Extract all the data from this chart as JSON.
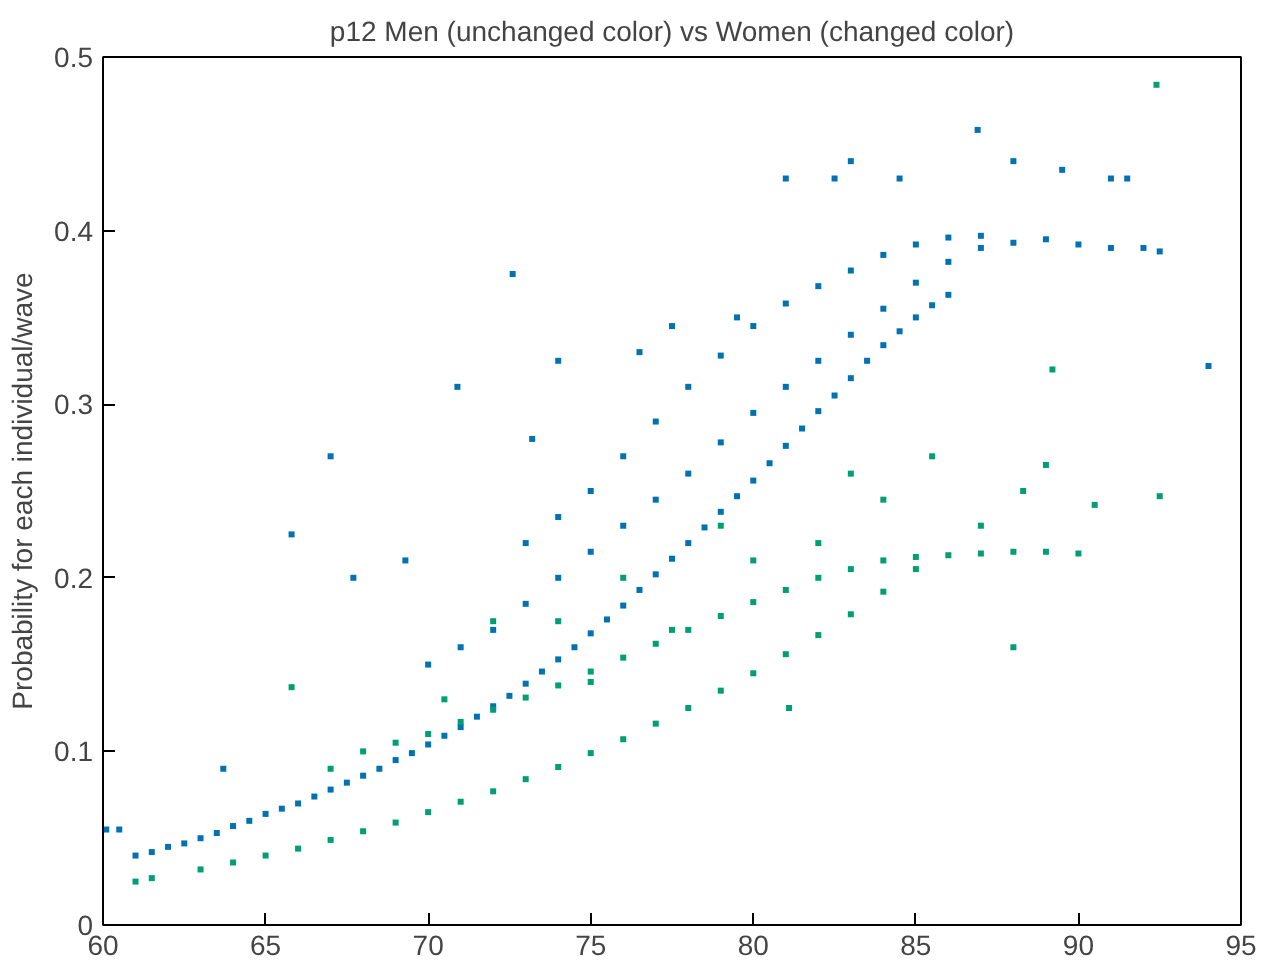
{
  "chart_data": {
    "type": "scatter",
    "title": "p12 Men (unchanged color) vs Women (changed color)",
    "ylabel": "Probability for each individual/wave",
    "xlim": [
      60,
      95
    ],
    "ylim": [
      0,
      0.5
    ],
    "xticks": [
      60,
      65,
      70,
      75,
      80,
      85,
      90,
      95
    ],
    "yticks": [
      0,
      0.1,
      0.2,
      0.3,
      0.4,
      0.5
    ],
    "grid": false,
    "marker": "square",
    "series": [
      {
        "color": "#0072b2",
        "x": [
          60.1,
          60.5,
          61,
          61.5,
          62,
          62.5,
          63,
          63.5,
          64,
          64.5,
          65,
          65.5,
          66,
          66.5,
          67,
          67.5,
          68,
          68.5,
          69,
          69.5,
          70,
          70.5,
          71,
          71.5,
          72,
          72.5,
          73,
          73.5,
          74,
          74.5,
          75,
          75.5,
          76,
          76.5,
          77,
          77.5,
          78,
          78.5,
          79,
          79.5,
          80,
          80.5,
          81,
          81.5,
          82,
          82.5,
          83,
          83.5,
          84,
          84.5,
          85,
          85.5,
          86,
          70,
          71,
          72,
          73,
          74,
          75,
          76,
          77,
          78,
          79,
          80,
          81,
          82,
          83,
          84,
          85,
          86,
          87,
          88,
          89,
          90,
          91,
          92,
          92.5,
          73,
          74,
          75,
          76,
          77,
          78,
          79,
          80,
          81,
          82,
          83,
          84,
          85,
          86,
          87,
          63.7,
          65.8,
          67,
          67.7,
          69.3,
          70.9,
          72.6,
          73.2,
          74,
          76.5,
          77.5,
          79.5,
          81,
          82.5,
          83,
          84.5,
          86.9,
          88,
          89.5,
          91,
          91.5,
          94
        ],
        "values": [
          0.055,
          0.055,
          0.04,
          0.042,
          0.045,
          0.047,
          0.05,
          0.053,
          0.057,
          0.06,
          0.064,
          0.067,
          0.07,
          0.074,
          0.078,
          0.082,
          0.086,
          0.09,
          0.095,
          0.099,
          0.104,
          0.109,
          0.114,
          0.12,
          0.126,
          0.132,
          0.139,
          0.146,
          0.153,
          0.16,
          0.168,
          0.176,
          0.184,
          0.193,
          0.202,
          0.211,
          0.22,
          0.229,
          0.238,
          0.247,
          0.256,
          0.266,
          0.276,
          0.286,
          0.296,
          0.305,
          0.315,
          0.325,
          0.334,
          0.342,
          0.35,
          0.357,
          0.363,
          0.15,
          0.16,
          0.17,
          0.185,
          0.2,
          0.215,
          0.23,
          0.245,
          0.26,
          0.278,
          0.295,
          0.31,
          0.325,
          0.34,
          0.355,
          0.37,
          0.382,
          0.39,
          0.393,
          0.395,
          0.392,
          0.39,
          0.39,
          0.388,
          0.22,
          0.235,
          0.25,
          0.27,
          0.29,
          0.31,
          0.328,
          0.345,
          0.358,
          0.368,
          0.377,
          0.386,
          0.392,
          0.396,
          0.397,
          0.09,
          0.225,
          0.27,
          0.2,
          0.21,
          0.31,
          0.375,
          0.28,
          0.325,
          0.33,
          0.345,
          0.35,
          0.43,
          0.43,
          0.44,
          0.43,
          0.458,
          0.44,
          0.435,
          0.43,
          0.43,
          0.322
        ]
      },
      {
        "color": "#009e73",
        "x": [
          61,
          61.5,
          63,
          64,
          65,
          66,
          67,
          68,
          69,
          70,
          71,
          72,
          73,
          74,
          75,
          76,
          77,
          78,
          79,
          80,
          81,
          82,
          83,
          84,
          85,
          68,
          69,
          70,
          71,
          72,
          73,
          74,
          75,
          76,
          77,
          78,
          79,
          80,
          81,
          82,
          83,
          84,
          85,
          86,
          87,
          88,
          89,
          90,
          65.8,
          67,
          70.5,
          72,
          74,
          75,
          76,
          77.5,
          79,
          80,
          81.1,
          82,
          83,
          84,
          85.5,
          87,
          88,
          88.3,
          89,
          89.2,
          90.5,
          92.4,
          92.5
        ],
        "values": [
          0.025,
          0.027,
          0.032,
          0.036,
          0.04,
          0.044,
          0.049,
          0.054,
          0.059,
          0.065,
          0.071,
          0.077,
          0.084,
          0.091,
          0.099,
          0.107,
          0.116,
          0.125,
          0.135,
          0.145,
          0.156,
          0.167,
          0.179,
          0.192,
          0.205,
          0.1,
          0.105,
          0.11,
          0.117,
          0.124,
          0.131,
          0.138,
          0.146,
          0.154,
          0.162,
          0.17,
          0.178,
          0.186,
          0.193,
          0.2,
          0.205,
          0.21,
          0.212,
          0.213,
          0.214,
          0.215,
          0.215,
          0.214,
          0.137,
          0.09,
          0.13,
          0.175,
          0.175,
          0.14,
          0.2,
          0.17,
          0.23,
          0.21,
          0.125,
          0.22,
          0.26,
          0.245,
          0.27,
          0.23,
          0.16,
          0.25,
          0.265,
          0.32,
          0.242,
          0.484,
          0.247
        ]
      }
    ]
  }
}
